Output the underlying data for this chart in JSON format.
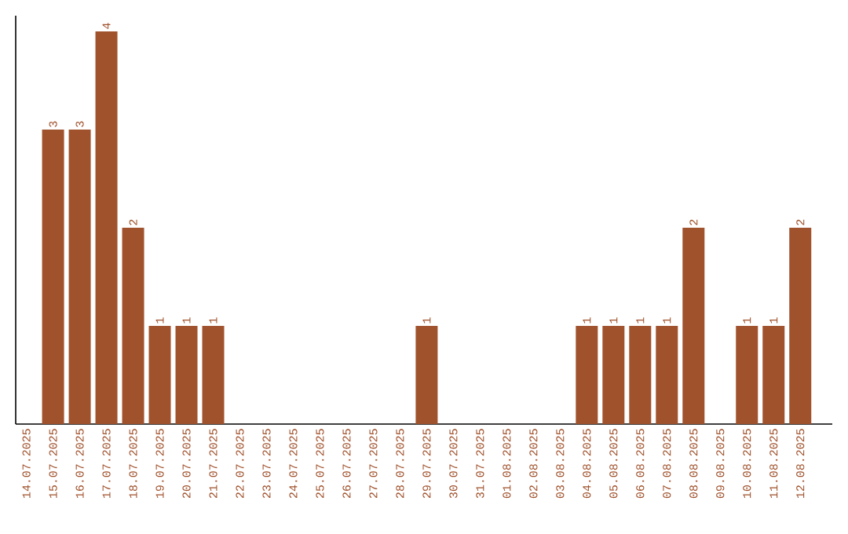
{
  "chart_data": {
    "type": "bar",
    "categories": [
      "14.07.2025",
      "15.07.2025",
      "16.07.2025",
      "17.07.2025",
      "18.07.2025",
      "19.07.2025",
      "20.07.2025",
      "21.07.2025",
      "22.07.2025",
      "23.07.2025",
      "24.07.2025",
      "25.07.2025",
      "26.07.2025",
      "27.07.2025",
      "28.07.2025",
      "29.07.2025",
      "30.07.2025",
      "31.07.2025",
      "01.08.2025",
      "02.08.2025",
      "03.08.2025",
      "04.08.2025",
      "05.08.2025",
      "06.08.2025",
      "07.08.2025",
      "08.08.2025",
      "09.08.2025",
      "10.08.2025",
      "11.08.2025",
      "12.08.2025"
    ],
    "values": [
      0,
      3,
      3,
      4,
      2,
      1,
      1,
      1,
      0,
      0,
      0,
      0,
      0,
      0,
      0,
      1,
      0,
      0,
      0,
      0,
      0,
      1,
      1,
      1,
      1,
      2,
      0,
      1,
      1,
      2
    ],
    "value_labels": [
      null,
      "3",
      "3",
      "4",
      "2",
      "1",
      "1",
      "1",
      null,
      null,
      null,
      null,
      null,
      null,
      null,
      "1",
      null,
      null,
      null,
      null,
      null,
      "1",
      "1",
      "1",
      "1",
      "2",
      null,
      "1",
      "1",
      "2"
    ],
    "color": "#a0522d",
    "ylim": [
      0,
      4.16
    ],
    "tick_labels": "x"
  }
}
